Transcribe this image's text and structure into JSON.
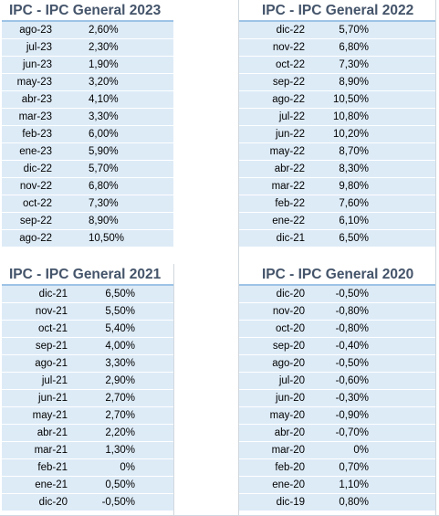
{
  "tables": [
    {
      "title": "IPC - IPC General 2023",
      "rows": [
        {
          "date": "ago-23",
          "value": "2,60%"
        },
        {
          "date": "jul-23",
          "value": "2,30%"
        },
        {
          "date": "jun-23",
          "value": "1,90%"
        },
        {
          "date": "may-23",
          "value": "3,20%"
        },
        {
          "date": "abr-23",
          "value": "4,10%"
        },
        {
          "date": "mar-23",
          "value": "3,30%"
        },
        {
          "date": "feb-23",
          "value": "6,00%"
        },
        {
          "date": "ene-23",
          "value": "5,90%"
        },
        {
          "date": "dic-22",
          "value": "5,70%"
        },
        {
          "date": "nov-22",
          "value": "6,80%"
        },
        {
          "date": "oct-22",
          "value": "7,30%"
        },
        {
          "date": "sep-22",
          "value": "8,90%"
        },
        {
          "date": "ago-22",
          "value": "10,50%"
        }
      ]
    },
    {
      "title": "IPC - IPC General 2022",
      "rows": [
        {
          "date": "dic-22",
          "value": "5,70%"
        },
        {
          "date": "nov-22",
          "value": "6,80%"
        },
        {
          "date": "oct-22",
          "value": "7,30%"
        },
        {
          "date": "sep-22",
          "value": "8,90%"
        },
        {
          "date": "ago-22",
          "value": "10,50%"
        },
        {
          "date": "jul-22",
          "value": "10,80%"
        },
        {
          "date": "jun-22",
          "value": "10,20%"
        },
        {
          "date": "may-22",
          "value": "8,70%"
        },
        {
          "date": "abr-22",
          "value": "8,30%"
        },
        {
          "date": "mar-22",
          "value": "9,80%"
        },
        {
          "date": "feb-22",
          "value": "7,60%"
        },
        {
          "date": "ene-22",
          "value": "6,10%"
        },
        {
          "date": "dic-21",
          "value": "6,50%"
        }
      ]
    },
    {
      "title": "IPC - IPC General 2021",
      "rows": [
        {
          "date": "dic-21",
          "value": "6,50%"
        },
        {
          "date": "nov-21",
          "value": "5,50%"
        },
        {
          "date": "oct-21",
          "value": "5,40%"
        },
        {
          "date": "sep-21",
          "value": "4,00%"
        },
        {
          "date": "ago-21",
          "value": "3,30%"
        },
        {
          "date": "jul-21",
          "value": "2,90%"
        },
        {
          "date": "jun-21",
          "value": "2,70%"
        },
        {
          "date": "may-21",
          "value": "2,70%"
        },
        {
          "date": "abr-21",
          "value": "2,20%"
        },
        {
          "date": "mar-21",
          "value": "1,30%"
        },
        {
          "date": "feb-21",
          "value": "0%"
        },
        {
          "date": "ene-21",
          "value": "0,50%"
        },
        {
          "date": "dic-20",
          "value": "-0,50%"
        }
      ]
    },
    {
      "title": "IPC - IPC General 2020",
      "rows": [
        {
          "date": "dic-20",
          "value": "-0,50%"
        },
        {
          "date": "nov-20",
          "value": "-0,80%"
        },
        {
          "date": "oct-20",
          "value": "-0,80%"
        },
        {
          "date": "sep-20",
          "value": "-0,40%"
        },
        {
          "date": "ago-20",
          "value": "-0,50%"
        },
        {
          "date": "jul-20",
          "value": "-0,60%"
        },
        {
          "date": "jun-20",
          "value": "-0,30%"
        },
        {
          "date": "may-20",
          "value": "-0,90%"
        },
        {
          "date": "abr-20",
          "value": "-0,70%"
        },
        {
          "date": "mar-20",
          "value": "0%"
        },
        {
          "date": "feb-20",
          "value": "0,70%"
        },
        {
          "date": "ene-20",
          "value": "1,10%"
        },
        {
          "date": "dic-19",
          "value": "0,80%"
        }
      ]
    }
  ],
  "colors": {
    "title_text": "#44546a",
    "title_border": "#9dc3e6",
    "row_fill": "#ddebf7"
  }
}
